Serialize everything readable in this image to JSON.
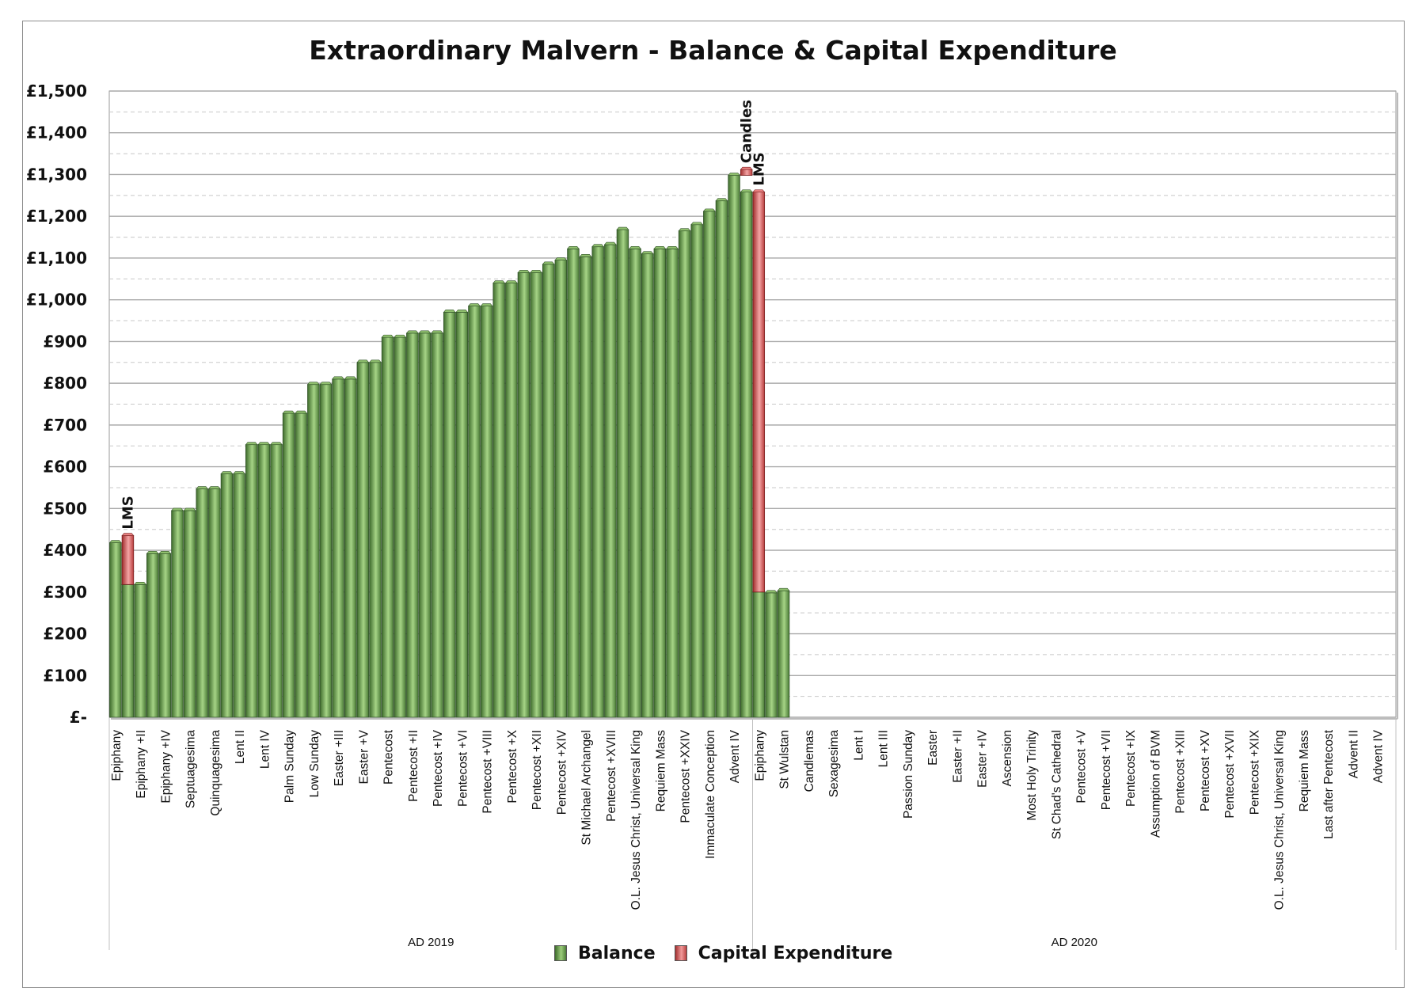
{
  "chart_data": {
    "type": "bar",
    "title": "Extraordinary Malvern - Balance & Capital Expenditure",
    "ylim": [
      0,
      1500
    ],
    "yticks": [
      "£-",
      "£100",
      "£200",
      "£300",
      "£400",
      "£500",
      "£600",
      "£700",
      "£800",
      "£900",
      "£1,000",
      "£1,100",
      "£1,200",
      "£1,300",
      "£1,400",
      "£1,500"
    ],
    "grid": true,
    "legend_position": "bottom",
    "colors": {
      "balance": "#6f9a4f",
      "capital_expenditure": "#d95f5f"
    },
    "categories": [
      "Epiphany",
      "",
      "Epiphany +II",
      "",
      "Epiphany +IV",
      "",
      "Septuagesima",
      "",
      "Quinquagesima",
      "",
      "Lent II",
      "",
      "Lent IV",
      "",
      "Palm Sunday",
      "",
      "Low Sunday",
      "",
      "Easter +III",
      "",
      "Easter +V",
      "",
      "Pentecost",
      "",
      "Pentecost +II",
      "",
      "Pentecost +IV",
      "",
      "Pentecost +VI",
      "",
      "Pentecost +VIII",
      "",
      "Pentecost +X",
      "",
      "Pentecost +XII",
      "",
      "Pentecost +XIV",
      "",
      "St Michael Archangel",
      "",
      "Pentecost +XVIII",
      "",
      "O.L. Jesus Christ, Universal King",
      "",
      "Requiem Mass",
      "",
      "Pentecost +XXIV",
      "",
      "Immaculate Conception",
      "",
      "Advent IV",
      "",
      "Epiphany",
      "",
      "St Wulstan",
      "",
      "Candlemas",
      "",
      "Sexagesima",
      "",
      "Lent I",
      "",
      "Lent III",
      "",
      "Passion Sunday",
      "",
      "Easter",
      "",
      "Easter +II",
      "",
      "Easter +IV",
      "",
      "Ascension",
      "",
      "Most Holy Trinity",
      "",
      "St Chad's Cathedral",
      "",
      "Pentecost +V",
      "",
      "Pentecost +VII",
      "",
      "Pentecost +IX",
      "",
      "Assumption of BVM",
      "",
      "Pentecost +XIII",
      "",
      "Pentecost +XV",
      "",
      "Pentecost +XVII",
      "",
      "Pentecost +XIX",
      "",
      "O.L. Jesus Christ, Universal King",
      "",
      "Requiem Mass",
      "",
      "Last after Pentecost",
      "",
      "Advent II",
      "",
      "Advent IV",
      ""
    ],
    "groups": [
      {
        "label": "AD 2019",
        "count": 52
      },
      {
        "label": "AD 2020",
        "count": 52
      }
    ],
    "series": [
      {
        "name": "Balance",
        "values": [
          418,
          318,
          318,
          392,
          392,
          495,
          495,
          547,
          547,
          583,
          583,
          653,
          653,
          653,
          728,
          728,
          797,
          797,
          810,
          810,
          850,
          850,
          910,
          910,
          920,
          920,
          920,
          970,
          970,
          985,
          985,
          1040,
          1040,
          1065,
          1065,
          1085,
          1095,
          1122,
          1103,
          1127,
          1132,
          1168,
          1122,
          1110,
          1122,
          1122,
          1165,
          1180,
          1212,
          1237,
          1298,
          1258,
          300,
          298,
          303,
          null,
          null,
          null,
          null,
          null,
          null,
          null,
          null,
          null,
          null,
          null,
          null,
          null,
          null,
          null,
          null,
          null,
          null,
          null,
          null,
          null,
          null,
          null,
          null,
          null,
          null,
          null,
          null,
          null,
          null,
          null,
          null,
          null,
          null,
          null,
          null,
          null,
          null,
          null,
          null,
          null,
          null,
          null,
          null,
          null,
          null,
          null,
          null,
          null
        ]
      },
      {
        "name": "Capital Expenditure",
        "ranges": [
          {
            "index": 1,
            "from": 318,
            "to": 435,
            "label": "LMS"
          },
          {
            "index": 51,
            "from": 1298,
            "to": 1312,
            "label": "Candles"
          },
          {
            "index": 52,
            "from": 300,
            "to": 1258,
            "label": "LMS"
          }
        ]
      }
    ]
  }
}
